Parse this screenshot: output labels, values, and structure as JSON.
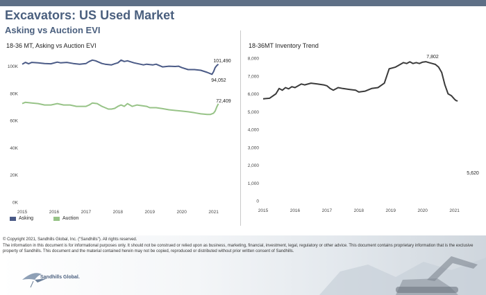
{
  "header": {
    "title": "Excavators:  US Used Market",
    "subtitle": "Asking vs Auction EVI"
  },
  "colors": {
    "asking": "#4a5a86",
    "auction": "#97c387",
    "inventory": "#3a3a3a",
    "brand": "#4a5f7e"
  },
  "chart_data": [
    {
      "type": "line",
      "title": "18-36 MT, Asking vs Auction EVI",
      "xlabel": "",
      "ylabel": "",
      "x_ticks": [
        "2015",
        "2016",
        "2017",
        "2018",
        "2019",
        "2020",
        "2021"
      ],
      "y_ticks": [
        "0K",
        "20K",
        "40K",
        "60K",
        "80K",
        "100K"
      ],
      "ylim": [
        0,
        110000
      ],
      "xlim": [
        2015,
        2021.4
      ],
      "grid": false,
      "legend": "bottom-left",
      "series": [
        {
          "name": "Asking",
          "color": "#4a5a86",
          "x": [
            2015,
            2015.1,
            2015.2,
            2015.3,
            2015.5,
            2015.7,
            2015.9,
            2016.1,
            2016.2,
            2016.4,
            2016.6,
            2016.8,
            2017.0,
            2017.1,
            2017.2,
            2017.3,
            2017.5,
            2017.6,
            2017.8,
            2017.9,
            2018.0,
            2018.1,
            2018.2,
            2018.3,
            2018.5,
            2018.6,
            2018.8,
            2018.9,
            2019.0,
            2019.1,
            2019.2,
            2019.4,
            2019.6,
            2019.8,
            2019.9,
            2020.0,
            2020.2,
            2020.4,
            2020.6,
            2020.8,
            2020.95,
            2021.0,
            2021.05,
            2021.1,
            2021.15
          ],
          "values": [
            101500,
            102800,
            101800,
            102800,
            102500,
            102000,
            101800,
            103000,
            102500,
            102800,
            102000,
            101500,
            102000,
            103500,
            104500,
            104000,
            102000,
            101500,
            101000,
            101800,
            102500,
            104500,
            103500,
            104000,
            102500,
            102000,
            101000,
            101500,
            101200,
            101000,
            101500,
            99500,
            100000,
            99800,
            100000,
            99000,
            97500,
            97500,
            97000,
            95500,
            94052,
            96000,
            99000,
            100500,
            101490
          ]
        },
        {
          "name": "Auction",
          "color": "#97c387",
          "x": [
            2015,
            2015.1,
            2015.3,
            2015.5,
            2015.7,
            2015.9,
            2016.1,
            2016.3,
            2016.5,
            2016.7,
            2016.9,
            2017.0,
            2017.1,
            2017.2,
            2017.35,
            2017.5,
            2017.6,
            2017.7,
            2017.8,
            2017.9,
            2018.0,
            2018.1,
            2018.2,
            2018.3,
            2018.45,
            2018.6,
            2018.75,
            2018.9,
            2019.0,
            2019.2,
            2019.4,
            2019.6,
            2019.8,
            2020.0,
            2020.2,
            2020.4,
            2020.6,
            2020.8,
            2020.9,
            2021.0,
            2021.05,
            2021.1,
            2021.15
          ],
          "values": [
            72500,
            73500,
            73000,
            72500,
            71500,
            71500,
            72500,
            71500,
            71500,
            70500,
            70500,
            70500,
            71500,
            73000,
            72500,
            70500,
            69500,
            68500,
            68500,
            69000,
            70500,
            71500,
            70500,
            72500,
            70500,
            71500,
            71000,
            70500,
            69500,
            69500,
            68800,
            68000,
            67500,
            67000,
            66500,
            65800,
            65000,
            64500,
            64500,
            65500,
            67000,
            70000,
            72409
          ]
        }
      ],
      "annotations": [
        "101,490",
        "94,052",
        "72,409"
      ]
    },
    {
      "type": "line",
      "title": "18-36MT Inventory Trend",
      "xlabel": "",
      "ylabel": "",
      "x_ticks": [
        "2015",
        "2016",
        "2017",
        "2018",
        "2019",
        "2020",
        "2021"
      ],
      "y_ticks": [
        "0",
        "1,000",
        "2,000",
        "3,000",
        "4,000",
        "5,000",
        "6,000",
        "7,000",
        "8,000"
      ],
      "ylim": [
        0,
        8000
      ],
      "xlim": [
        2015,
        2021.4
      ],
      "grid": false,
      "series": [
        {
          "name": "",
          "color": "#3a3a3a",
          "x": [
            2015,
            2015.2,
            2015.4,
            2015.5,
            2015.6,
            2015.7,
            2015.8,
            2015.9,
            2016.0,
            2016.1,
            2016.2,
            2016.3,
            2016.5,
            2016.7,
            2016.9,
            2017.0,
            2017.1,
            2017.2,
            2017.35,
            2017.5,
            2017.7,
            2017.9,
            2018.0,
            2018.2,
            2018.4,
            2018.6,
            2018.8,
            2018.95,
            2019.05,
            2019.15,
            2019.2,
            2019.3,
            2019.4,
            2019.5,
            2019.6,
            2019.7,
            2019.8,
            2019.9,
            2020.0,
            2020.1,
            2020.2,
            2020.3,
            2020.4,
            2020.5,
            2020.6,
            2020.7,
            2020.8,
            2020.9,
            2021.0,
            2021.05,
            2021.1
          ],
          "values": [
            5720,
            5750,
            6000,
            6300,
            6200,
            6350,
            6280,
            6400,
            6350,
            6450,
            6550,
            6500,
            6600,
            6550,
            6500,
            6450,
            6300,
            6200,
            6350,
            6300,
            6250,
            6200,
            6100,
            6150,
            6300,
            6350,
            6600,
            7400,
            7450,
            7500,
            7550,
            7650,
            7750,
            7700,
            7800,
            7700,
            7750,
            7700,
            7780,
            7802,
            7750,
            7700,
            7650,
            7500,
            7200,
            6500,
            6000,
            5900,
            5700,
            5620,
            5600
          ]
        }
      ],
      "annotations": [
        "7,802",
        "5,620"
      ]
    }
  ],
  "legend": {
    "asking": "Asking",
    "auction": "Auction"
  },
  "footer": {
    "copyright": "© Copyright 2021, Sandhills Global, Inc. (\"Sandhills\"). All rights reserved.",
    "disclaimer": "The information in this document is for informational purposes only.  It should not be construed or relied upon as business, marketing, financial, investment, legal, regulatory or other advice. This document contains proprietary information that is the exclusive property of Sandhills. This document and the material contained herein may not be copied, reproduced or distributed without prior written consent of Sandhills.",
    "logo_text": "Sandhills Global."
  }
}
